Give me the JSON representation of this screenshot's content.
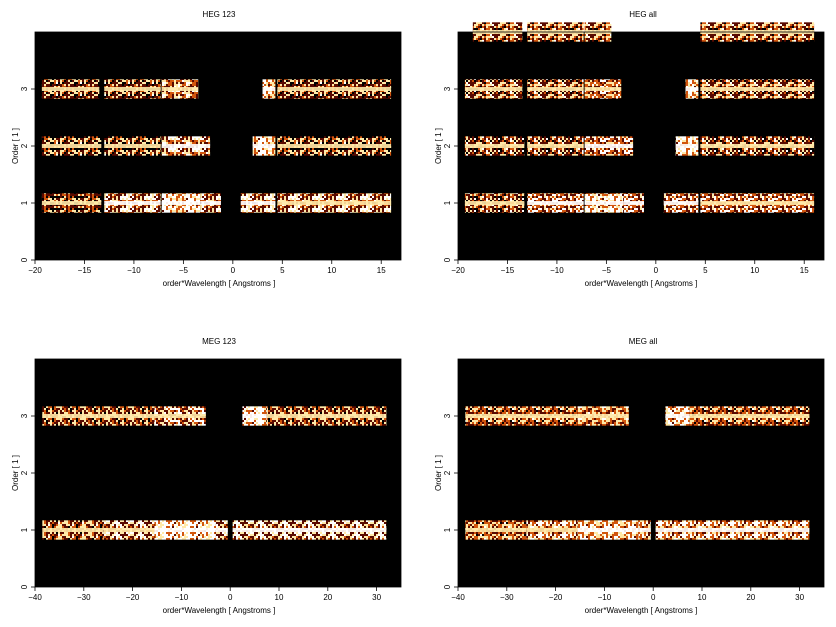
{
  "chart_data": [
    {
      "type": "heatmap",
      "title": "HEG 123",
      "xlabel": "order*Wavelength [ Angstroms ]",
      "ylabel": "Order [ 1 ]",
      "xlim": [
        -20,
        17
      ],
      "ylim": [
        0,
        4
      ],
      "xticks": [
        -20,
        -15,
        -10,
        -5,
        0,
        5,
        10,
        15
      ],
      "yticks": [
        0,
        1,
        2,
        3
      ],
      "grid": false,
      "colormap": "black-red-orange-yellow-white",
      "colors": {
        "background": "#000000",
        "low": "#5a0a00",
        "mid": "#d2560e",
        "high": "#ffe9a8",
        "peak": "#ffffff"
      },
      "bands": [
        {
          "order": 1,
          "segments": [
            [
              -19.3,
              -13.3,
              0.6
            ],
            [
              -13.0,
              -7.3,
              0.75
            ],
            [
              -7.2,
              -3.3,
              0.9
            ],
            [
              -3.3,
              -1.2,
              0.85
            ],
            [
              0.8,
              4.3,
              0.7
            ],
            [
              4.5,
              16.0,
              0.65
            ]
          ]
        },
        {
          "order": 2,
          "segments": [
            [
              -19.3,
              -13.3,
              0.55
            ],
            [
              -13.0,
              -7.3,
              0.5
            ],
            [
              -7.2,
              -2.3,
              0.7
            ],
            [
              2.0,
              4.3,
              0.95
            ],
            [
              4.5,
              16.0,
              0.55
            ]
          ]
        },
        {
          "order": 3,
          "segments": [
            [
              -19.3,
              -13.5,
              0.55
            ],
            [
              -13.0,
              -7.3,
              0.5
            ],
            [
              -7.2,
              -3.5,
              0.65
            ],
            [
              3.0,
              4.3,
              0.95
            ],
            [
              4.5,
              16.0,
              0.6
            ]
          ]
        }
      ]
    },
    {
      "type": "heatmap",
      "title": "HEG all",
      "xlabel": "order*Wavelength [ Angstroms ]",
      "ylabel": "Order [ 1 ]",
      "xlim": [
        -20,
        17
      ],
      "ylim": [
        0,
        4
      ],
      "xticks": [
        -20,
        -15,
        -10,
        -5,
        0,
        5,
        10,
        15
      ],
      "yticks": [
        0,
        1,
        2,
        3
      ],
      "grid": false,
      "colormap": "black-red-orange-yellow-white",
      "colors": {
        "background": "#000000",
        "low": "#5a0a00",
        "mid": "#d2560e",
        "high": "#ffe9a8",
        "peak": "#ffffff"
      },
      "bands": [
        {
          "order": 1,
          "segments": [
            [
              -19.3,
              -13.3,
              0.6
            ],
            [
              -13.0,
              -7.3,
              0.75
            ],
            [
              -7.2,
              -3.3,
              0.9
            ],
            [
              -3.3,
              -1.2,
              0.85
            ],
            [
              0.8,
              4.3,
              0.7
            ],
            [
              4.5,
              16.0,
              0.65
            ]
          ]
        },
        {
          "order": 2,
          "segments": [
            [
              -19.3,
              -13.3,
              0.55
            ],
            [
              -13.0,
              -7.3,
              0.5
            ],
            [
              -7.2,
              -2.3,
              0.7
            ],
            [
              2.0,
              4.3,
              0.95
            ],
            [
              4.5,
              16.0,
              0.55
            ]
          ]
        },
        {
          "order": 3,
          "segments": [
            [
              -19.3,
              -13.5,
              0.55
            ],
            [
              -13.0,
              -7.3,
              0.5
            ],
            [
              -7.2,
              -3.5,
              0.65
            ],
            [
              3.0,
              4.3,
              0.95
            ],
            [
              4.5,
              16.0,
              0.6
            ]
          ]
        },
        {
          "order": 4,
          "segments": [
            [
              -18.5,
              -13.5,
              0.5
            ],
            [
              -13.0,
              -7.3,
              0.55
            ],
            [
              -7.2,
              -4.5,
              0.6
            ],
            [
              4.5,
              16.0,
              0.55
            ]
          ]
        }
      ]
    },
    {
      "type": "heatmap",
      "title": "MEG 123",
      "xlabel": "order*Wavelength [ Angstroms ]",
      "ylabel": "Order [ 1 ]",
      "xlim": [
        -40,
        35
      ],
      "ylim": [
        0,
        4
      ],
      "xticks": [
        -40,
        -30,
        -20,
        -10,
        0,
        10,
        20,
        30
      ],
      "yticks": [
        0,
        1,
        2,
        3
      ],
      "grid": false,
      "colormap": "black-red-orange-yellow-white",
      "colors": {
        "background": "#000000",
        "low": "#5a0a00",
        "mid": "#d2560e",
        "high": "#ffe9a8",
        "peak": "#ffffff"
      },
      "bands": [
        {
          "order": 1,
          "segments": [
            [
              -38.5,
              -26.0,
              0.6
            ],
            [
              -26.0,
              -15.5,
              0.65
            ],
            [
              -15.5,
              -3.0,
              0.9
            ],
            [
              -3.0,
              -0.5,
              0.7
            ],
            [
              0.5,
              32.0,
              0.7
            ]
          ]
        },
        {
          "order": 3,
          "segments": [
            [
              -38.5,
              -27.0,
              0.55
            ],
            [
              -27.0,
              -15.5,
              0.55
            ],
            [
              -15.5,
              -5.0,
              0.65
            ],
            [
              2.5,
              7.5,
              0.95
            ],
            [
              7.5,
              32.0,
              0.6
            ]
          ]
        }
      ]
    },
    {
      "type": "heatmap",
      "title": "MEG all",
      "xlabel": "order*Wavelength [ Angstroms ]",
      "ylabel": "Order [ 1 ]",
      "xlim": [
        -40,
        35
      ],
      "ylim": [
        0,
        4
      ],
      "xticks": [
        -40,
        -30,
        -20,
        -10,
        0,
        10,
        20,
        30
      ],
      "yticks": [
        0,
        1,
        2,
        3
      ],
      "grid": false,
      "colormap": "black-red-orange-yellow-white",
      "colors": {
        "background": "#000000",
        "low": "#5a0a00",
        "mid": "#d2560e",
        "high": "#ffe9a8",
        "peak": "#ffffff"
      },
      "bands": [
        {
          "order": 1,
          "segments": [
            [
              -38.5,
              -26.0,
              0.6
            ],
            [
              -26.0,
              -15.5,
              0.65
            ],
            [
              -15.5,
              -3.0,
              0.9
            ],
            [
              -3.0,
              -0.5,
              0.7
            ],
            [
              0.5,
              32.0,
              0.7
            ]
          ]
        },
        {
          "order": 3,
          "segments": [
            [
              -38.5,
              -27.0,
              0.55
            ],
            [
              -27.0,
              -15.5,
              0.55
            ],
            [
              -15.5,
              -5.0,
              0.65
            ],
            [
              2.5,
              7.5,
              0.95
            ],
            [
              7.5,
              32.0,
              0.6
            ]
          ]
        }
      ]
    }
  ]
}
